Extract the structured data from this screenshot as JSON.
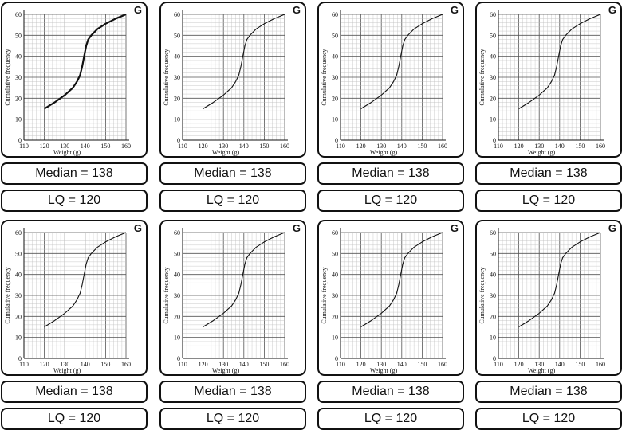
{
  "badge": "G",
  "median_label": "Median = 138",
  "lq_label": "LQ = 120",
  "chart_data": {
    "type": "line",
    "title": "",
    "xlabel": "Weight (g)",
    "ylabel": "Cumulative frequency",
    "xlim": [
      110,
      160
    ],
    "ylim": [
      0,
      60
    ],
    "x_ticks": [
      "110",
      "120",
      "130",
      "140",
      "150",
      "160"
    ],
    "y_ticks": [
      "0",
      "10",
      "20",
      "30",
      "40",
      "50",
      "60"
    ],
    "grid": true,
    "series": [
      {
        "x": [
          120,
          125,
          130,
          134,
          136,
          137.5,
          138.5,
          139.5,
          140.5,
          141.5,
          143,
          146,
          150,
          155,
          160
        ],
        "y": [
          15,
          18,
          21.5,
          25,
          28,
          31,
          35,
          40,
          45,
          48,
          50,
          53,
          55.5,
          58,
          60
        ]
      }
    ]
  },
  "cards": [
    {
      "median": "Median = 138",
      "lq": "LQ = 120"
    },
    {
      "median": "Median = 138",
      "lq": "LQ = 120"
    },
    {
      "median": "Median = 138",
      "lq": "LQ = 120"
    },
    {
      "median": "Median = 138",
      "lq": "LQ = 120"
    },
    {
      "median": "Median = 138",
      "lq": "LQ = 120"
    },
    {
      "median": "Median = 138",
      "lq": "LQ = 120"
    },
    {
      "median": "Median = 138",
      "lq": "LQ = 120"
    },
    {
      "median": "Median = 138",
      "lq": "LQ = 120"
    }
  ]
}
